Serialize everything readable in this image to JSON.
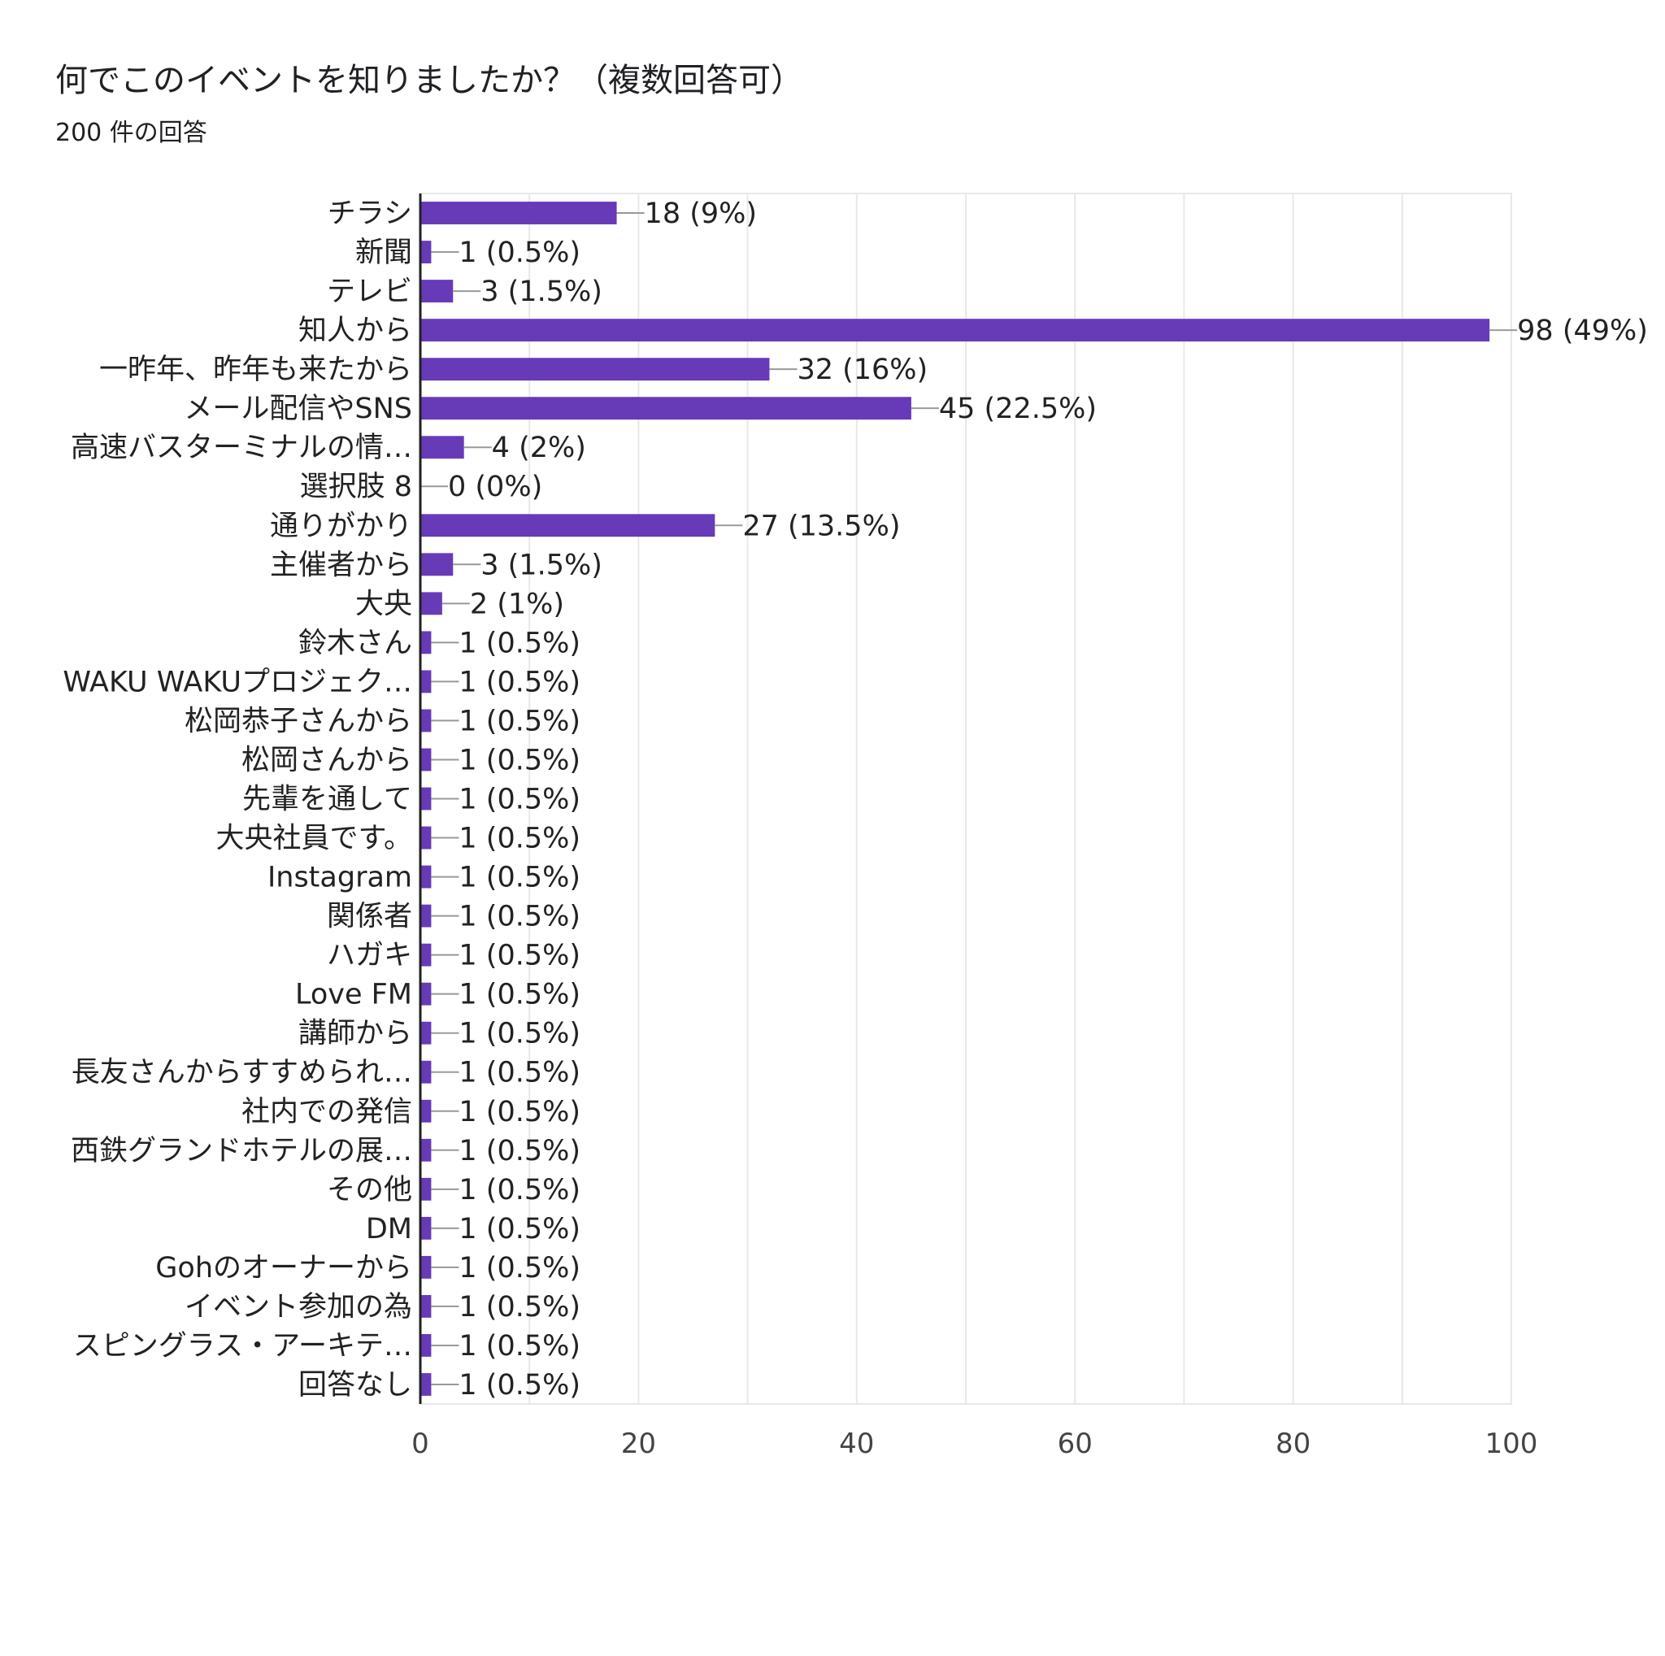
{
  "title": "何でこのイベントを知りましたか？（複数回答可）",
  "subtitle": "200 件の回答",
  "colors": {
    "bar": "#673ab7",
    "grid": "#e8e8e8",
    "axis": "#222222",
    "leader": "#999999"
  },
  "chart_data": {
    "type": "bar",
    "orientation": "horizontal",
    "title": "何でこのイベントを知りましたか？（複数回答可）",
    "subtitle": "200 件の回答",
    "categories": [
      "チラシ",
      "新聞",
      "テレビ",
      "知人から",
      "一昨年、昨年も来たから",
      "メール配信やSNS",
      "高速バスターミナルの情…",
      "選択肢 8",
      "通りがかり",
      "主催者から",
      "大央",
      "鈴木さん",
      "WAKU WAKUプロジェク…",
      "松岡恭子さんから",
      "松岡さんから",
      "先輩を通して",
      "大央社員です。",
      "Instagram",
      "関係者",
      "ハガキ",
      "Love FM",
      "講師から",
      "長友さんからすすめられ…",
      "社内での発信",
      "西鉄グランドホテルの展…",
      "その他",
      "DM",
      "Gohのオーナーから",
      "イベント参加の為",
      "スピングラス・アーキテ…",
      "回答なし"
    ],
    "values": [
      18,
      1,
      3,
      98,
      32,
      45,
      4,
      0,
      27,
      3,
      2,
      1,
      1,
      1,
      1,
      1,
      1,
      1,
      1,
      1,
      1,
      1,
      1,
      1,
      1,
      1,
      1,
      1,
      1,
      1,
      1
    ],
    "data_labels": [
      "18 (9%)",
      "1 (0.5%)",
      "3 (1.5%)",
      "98 (49%)",
      "32 (16%)",
      "45 (22.5%)",
      "4 (2%)",
      "0 (0%)",
      "27 (13.5%)",
      "3 (1.5%)",
      "2 (1%)",
      "1 (0.5%)",
      "1 (0.5%)",
      "1 (0.5%)",
      "1 (0.5%)",
      "1 (0.5%)",
      "1 (0.5%)",
      "1 (0.5%)",
      "1 (0.5%)",
      "1 (0.5%)",
      "1 (0.5%)",
      "1 (0.5%)",
      "1 (0.5%)",
      "1 (0.5%)",
      "1 (0.5%)",
      "1 (0.5%)",
      "1 (0.5%)",
      "1 (0.5%)",
      "1 (0.5%)",
      "1 (0.5%)",
      "1 (0.5%)"
    ],
    "xlim": [
      0,
      100
    ],
    "xticks": [
      0,
      20,
      40,
      60,
      80,
      100
    ],
    "grid": true,
    "legend": "none"
  }
}
